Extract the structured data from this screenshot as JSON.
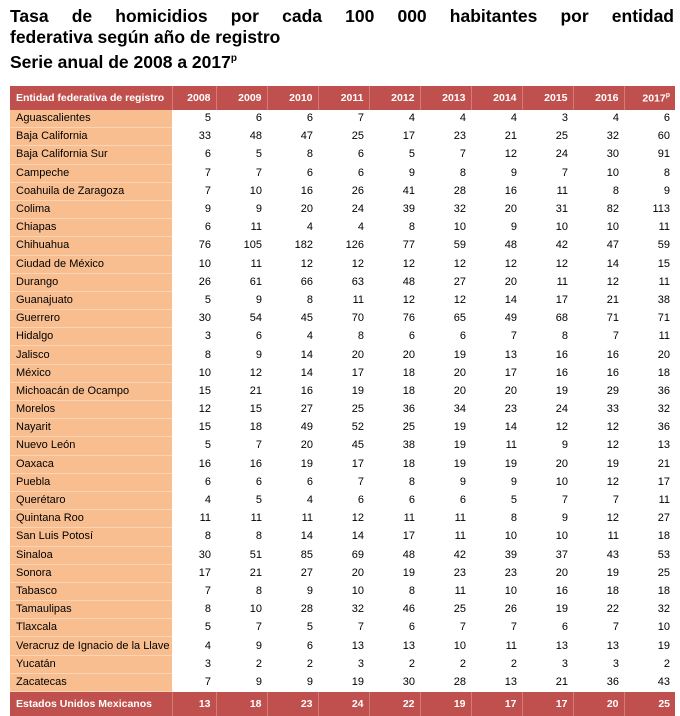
{
  "title": {
    "line1": "Tasa de homicidios por cada 100 000 habitantes por entidad",
    "line2": "federativa según año de registro",
    "line3": "Serie anual de 2008 a 2017",
    "line3_sup": "p"
  },
  "table": {
    "entity_header": "Entidad federativa de registro",
    "years": [
      "2008",
      "2009",
      "2010",
      "2011",
      "2012",
      "2013",
      "2014",
      "2015",
      "2016",
      "2017"
    ],
    "last_year_sup": "p",
    "rows": [
      {
        "name": "Aguascalientes",
        "values": [
          5,
          6,
          6,
          7,
          4,
          4,
          4,
          3,
          4,
          6
        ]
      },
      {
        "name": "Baja California",
        "values": [
          33,
          48,
          47,
          25,
          17,
          23,
          21,
          25,
          32,
          60
        ]
      },
      {
        "name": "Baja California Sur",
        "values": [
          6,
          5,
          8,
          6,
          5,
          7,
          12,
          24,
          30,
          91
        ]
      },
      {
        "name": "Campeche",
        "values": [
          7,
          7,
          6,
          6,
          9,
          8,
          9,
          7,
          10,
          8
        ]
      },
      {
        "name": "Coahuila de Zaragoza",
        "values": [
          7,
          10,
          16,
          26,
          41,
          28,
          16,
          11,
          8,
          9
        ]
      },
      {
        "name": "Colima",
        "values": [
          9,
          9,
          20,
          24,
          39,
          32,
          20,
          31,
          82,
          113
        ]
      },
      {
        "name": "Chiapas",
        "values": [
          6,
          11,
          4,
          4,
          8,
          10,
          9,
          10,
          10,
          11
        ]
      },
      {
        "name": "Chihuahua",
        "values": [
          76,
          105,
          182,
          126,
          77,
          59,
          48,
          42,
          47,
          59
        ]
      },
      {
        "name": "Ciudad de México",
        "values": [
          10,
          11,
          12,
          12,
          12,
          12,
          12,
          12,
          14,
          15
        ]
      },
      {
        "name": "Durango",
        "values": [
          26,
          61,
          66,
          63,
          48,
          27,
          20,
          11,
          12,
          11
        ]
      },
      {
        "name": "Guanajuato",
        "values": [
          5,
          9,
          8,
          11,
          12,
          12,
          14,
          17,
          21,
          38
        ]
      },
      {
        "name": "Guerrero",
        "values": [
          30,
          54,
          45,
          70,
          76,
          65,
          49,
          68,
          71,
          71
        ]
      },
      {
        "name": "Hidalgo",
        "values": [
          3,
          6,
          4,
          8,
          6,
          6,
          7,
          8,
          7,
          11
        ]
      },
      {
        "name": "Jalisco",
        "values": [
          8,
          9,
          14,
          20,
          20,
          19,
          13,
          16,
          16,
          20
        ]
      },
      {
        "name": "México",
        "values": [
          10,
          12,
          14,
          17,
          18,
          20,
          17,
          16,
          16,
          18
        ]
      },
      {
        "name": "Michoacán de Ocampo",
        "values": [
          15,
          21,
          16,
          19,
          18,
          20,
          20,
          19,
          29,
          36
        ]
      },
      {
        "name": "Morelos",
        "values": [
          12,
          15,
          27,
          25,
          36,
          34,
          23,
          24,
          33,
          32
        ]
      },
      {
        "name": "Nayarit",
        "values": [
          15,
          18,
          49,
          52,
          25,
          19,
          14,
          12,
          12,
          36
        ]
      },
      {
        "name": "Nuevo León",
        "values": [
          5,
          7,
          20,
          45,
          38,
          19,
          11,
          9,
          12,
          13
        ]
      },
      {
        "name": "Oaxaca",
        "values": [
          16,
          16,
          19,
          17,
          18,
          19,
          19,
          20,
          19,
          21
        ]
      },
      {
        "name": "Puebla",
        "values": [
          6,
          6,
          6,
          7,
          8,
          9,
          9,
          10,
          12,
          17
        ]
      },
      {
        "name": "Querétaro",
        "values": [
          4,
          5,
          4,
          6,
          6,
          6,
          5,
          7,
          7,
          11
        ]
      },
      {
        "name": "Quintana Roo",
        "values": [
          11,
          11,
          11,
          12,
          11,
          11,
          8,
          9,
          12,
          27
        ]
      },
      {
        "name": "San Luis Potosí",
        "values": [
          8,
          8,
          14,
          14,
          17,
          11,
          10,
          10,
          11,
          18
        ]
      },
      {
        "name": "Sinaloa",
        "values": [
          30,
          51,
          85,
          69,
          48,
          42,
          39,
          37,
          43,
          53
        ]
      },
      {
        "name": "Sonora",
        "values": [
          17,
          21,
          27,
          20,
          19,
          23,
          23,
          20,
          19,
          25
        ]
      },
      {
        "name": "Tabasco",
        "values": [
          7,
          8,
          9,
          10,
          8,
          11,
          10,
          16,
          18,
          18
        ]
      },
      {
        "name": "Tamaulipas",
        "values": [
          8,
          10,
          28,
          32,
          46,
          25,
          26,
          19,
          22,
          32
        ]
      },
      {
        "name": "Tlaxcala",
        "values": [
          5,
          7,
          5,
          7,
          6,
          7,
          7,
          6,
          7,
          10
        ]
      },
      {
        "name": "Veracruz de Ignacio de la Llave",
        "values": [
          4,
          9,
          6,
          13,
          13,
          10,
          11,
          13,
          13,
          19
        ]
      },
      {
        "name": "Yucatán",
        "values": [
          3,
          2,
          2,
          3,
          2,
          2,
          2,
          3,
          3,
          2
        ]
      },
      {
        "name": "Zacatecas",
        "values": [
          7,
          9,
          9,
          19,
          30,
          28,
          13,
          21,
          36,
          43
        ]
      }
    ],
    "total": {
      "name": "Estados Unidos Mexicanos",
      "values": [
        13,
        18,
        23,
        24,
        22,
        19,
        17,
        17,
        20,
        25
      ]
    }
  },
  "colors": {
    "header_bg": "#c0504d",
    "entity_col_bg": "#f8be90"
  }
}
